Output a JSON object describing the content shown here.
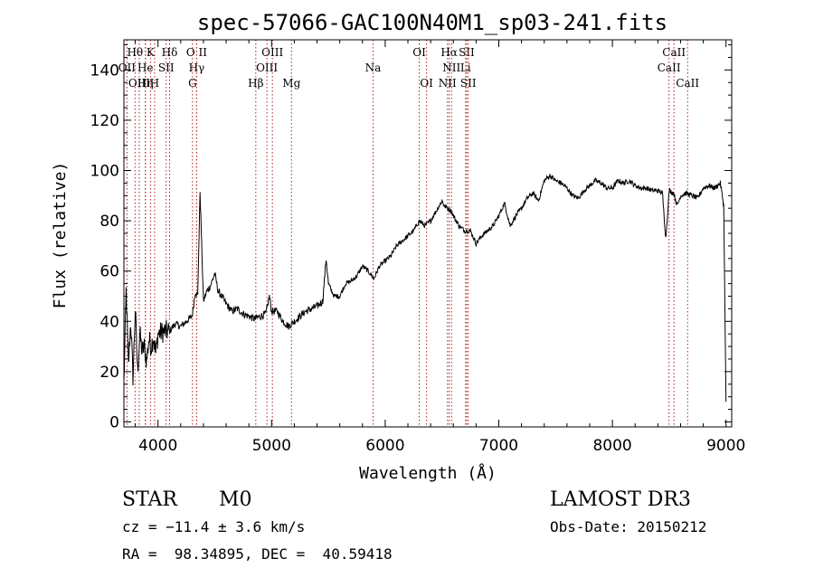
{
  "colors": {
    "axis": "#000000",
    "spectrum": "#000000",
    "line_marker": "#b22222",
    "background": "#ffffff"
  },
  "info": {
    "object_class": "STAR",
    "subclass": "M0",
    "survey": "LAMOST DR3",
    "redshift": "cz = −11.4 ± 3.6 km/s",
    "obs_date": "Obs-Date: 20150212",
    "coords": "RA =  98.34895, DEC =  40.59418"
  },
  "chart_data": {
    "type": "line",
    "title": "spec-57066-GAC100N40M1_sp03-241.fits",
    "xlabel": "Wavelength (Å)",
    "ylabel": "Flux (relative)",
    "xlim": [
      3700,
      9050
    ],
    "ylim": [
      -2,
      152
    ],
    "xticks": [
      4000,
      5000,
      6000,
      7000,
      8000,
      9000
    ],
    "yticks": [
      0,
      20,
      40,
      60,
      80,
      100,
      120,
      140
    ],
    "x_minor_step": 200,
    "y_minor_step": 5,
    "series": [
      {
        "name": "flux",
        "x": [
          3700,
          3720,
          3740,
          3760,
          3780,
          3800,
          3820,
          3840,
          3860,
          3880,
          3900,
          3920,
          3940,
          3960,
          3980,
          4000,
          4050,
          4100,
          4150,
          4200,
          4250,
          4300,
          4330,
          4350,
          4370,
          4400,
          4430,
          4460,
          4500,
          4530,
          4560,
          4600,
          4650,
          4700,
          4750,
          4800,
          4850,
          4900,
          4950,
          4980,
          5000,
          5050,
          5100,
          5150,
          5200,
          5250,
          5300,
          5350,
          5400,
          5450,
          5480,
          5500,
          5550,
          5600,
          5650,
          5700,
          5750,
          5800,
          5850,
          5900,
          5950,
          6000,
          6050,
          6100,
          6150,
          6200,
          6250,
          6300,
          6350,
          6400,
          6450,
          6500,
          6520,
          6550,
          6580,
          6600,
          6650,
          6700,
          6750,
          6800,
          6850,
          6900,
          6950,
          7000,
          7050,
          7100,
          7150,
          7200,
          7250,
          7300,
          7350,
          7400,
          7450,
          7500,
          7550,
          7600,
          7650,
          7700,
          7750,
          7800,
          7850,
          7900,
          7950,
          8000,
          8050,
          8100,
          8150,
          8200,
          8250,
          8300,
          8350,
          8400,
          8440,
          8470,
          8500,
          8540,
          8570,
          8600,
          8650,
          8700,
          8750,
          8800,
          8850,
          8900,
          8950,
          8980,
          9000
        ],
        "y": [
          15,
          52,
          22,
          40,
          18,
          45,
          20,
          35,
          28,
          30,
          24,
          33,
          30,
          34,
          27,
          35,
          36,
          36,
          39,
          38,
          40,
          42,
          52,
          50,
          92,
          48,
          52,
          54,
          59,
          52,
          50,
          47,
          44,
          45,
          43,
          42,
          41,
          42,
          43,
          50,
          44,
          44,
          40,
          38,
          40,
          42,
          44,
          45,
          46,
          48,
          65,
          55,
          50,
          50,
          55,
          56,
          58,
          62,
          60,
          57,
          62,
          64,
          66,
          70,
          72,
          74,
          76,
          80,
          78,
          80,
          84,
          88,
          86,
          85,
          84,
          82,
          78,
          76,
          76,
          71,
          74,
          76,
          78,
          82,
          87,
          78,
          82,
          85,
          89,
          91,
          88,
          96,
          98,
          96,
          95,
          93,
          90,
          89,
          92,
          94,
          96,
          95,
          93,
          93,
          96,
          95,
          96,
          94,
          93,
          93,
          92,
          92,
          91,
          73,
          92,
          91,
          86,
          90,
          91,
          90,
          89,
          93,
          94,
          93,
          95,
          86,
          8
        ]
      }
    ],
    "spectral_lines": [
      {
        "label": "Hθ",
        "wavelength": 3798,
        "row": 1
      },
      {
        "label": "K",
        "wavelength": 3934,
        "row": 1
      },
      {
        "label": "Hδ",
        "wavelength": 4102,
        "row": 1
      },
      {
        "label": "O II",
        "wavelength": 4340,
        "row": 1
      },
      {
        "label": "OIII",
        "wavelength": 5007,
        "row": 1
      },
      {
        "label": "OI",
        "wavelength": 6300,
        "row": 1
      },
      {
        "label": "Hα",
        "wavelength": 6563,
        "row": 1
      },
      {
        "label": "SII",
        "wavelength": 6717,
        "row": 1
      },
      {
        "label": "CaII",
        "wavelength": 8542,
        "row": 1
      },
      {
        "label": "OII",
        "wavelength": 3727,
        "row": 2
      },
      {
        "label": "He",
        "wavelength": 3889,
        "row": 2
      },
      {
        "label": "SII",
        "wavelength": 4072,
        "row": 2
      },
      {
        "label": "Hγ",
        "wavelength": 4340,
        "row": 2
      },
      {
        "label": "OIII",
        "wavelength": 4959,
        "row": 2
      },
      {
        "label": "Na",
        "wavelength": 5893,
        "row": 2
      },
      {
        "label": "NII",
        "wavelength": 6584,
        "row": 2
      },
      {
        "label": "Li",
        "wavelength": 6708,
        "row": 2
      },
      {
        "label": "CaII",
        "wavelength": 8498,
        "row": 2
      },
      {
        "label": "OIII",
        "wavelength": 3835,
        "row": 3
      },
      {
        "label": "Hη",
        "wavelength": 3889,
        "row": 3
      },
      {
        "label": "H",
        "wavelength": 3970,
        "row": 3
      },
      {
        "label": "G",
        "wavelength": 4304,
        "row": 3
      },
      {
        "label": "Hβ",
        "wavelength": 4861,
        "row": 3
      },
      {
        "label": "Mg",
        "wavelength": 5175,
        "row": 3
      },
      {
        "label": "OI",
        "wavelength": 6364,
        "row": 3
      },
      {
        "label": "NII",
        "wavelength": 6548,
        "row": 3
      },
      {
        "label": "SII",
        "wavelength": 6731,
        "row": 3
      },
      {
        "label": "CaII",
        "wavelength": 8662,
        "row": 3
      }
    ]
  }
}
